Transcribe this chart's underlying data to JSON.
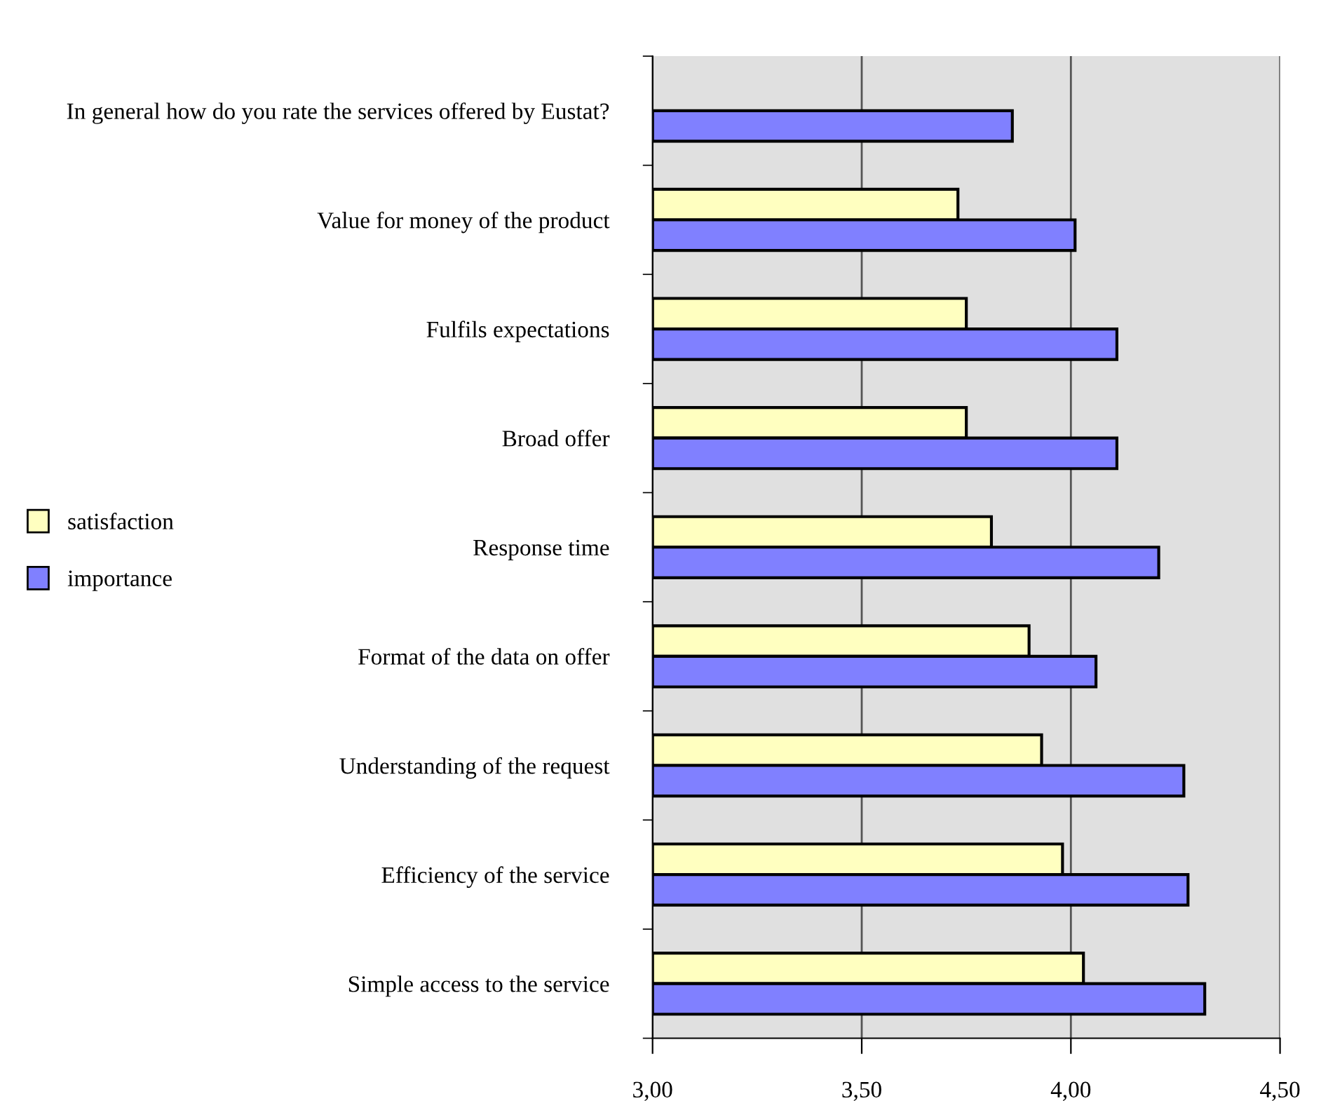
{
  "chart_data": {
    "type": "bar",
    "orientation": "horizontal",
    "categories": [
      "In general how do you rate the services offered by Eustat?",
      "Value for money of the product",
      "Fulfils expectations",
      "Broad offer",
      "Response time",
      "Format of the data on offer",
      "Understanding of the request",
      "Efficiency of the service",
      "Simple access to the service"
    ],
    "series": [
      {
        "name": "satisfaction",
        "color": "#ffffc0",
        "values": [
          null,
          3.73,
          3.75,
          3.75,
          3.81,
          3.9,
          3.93,
          3.98,
          4.03
        ]
      },
      {
        "name": "importance",
        "color": "#8080ff",
        "values": [
          3.86,
          4.01,
          4.11,
          4.11,
          4.21,
          4.06,
          4.27,
          4.28,
          4.32
        ]
      }
    ],
    "xlim": [
      3.0,
      4.5
    ],
    "xticks": [
      {
        "value": 3.0,
        "label": "3,00"
      },
      {
        "value": 3.5,
        "label": "3,50"
      },
      {
        "value": 4.0,
        "label": "4,00"
      },
      {
        "value": 4.5,
        "label": "4,50"
      }
    ],
    "grid": "x",
    "legend": "left"
  }
}
